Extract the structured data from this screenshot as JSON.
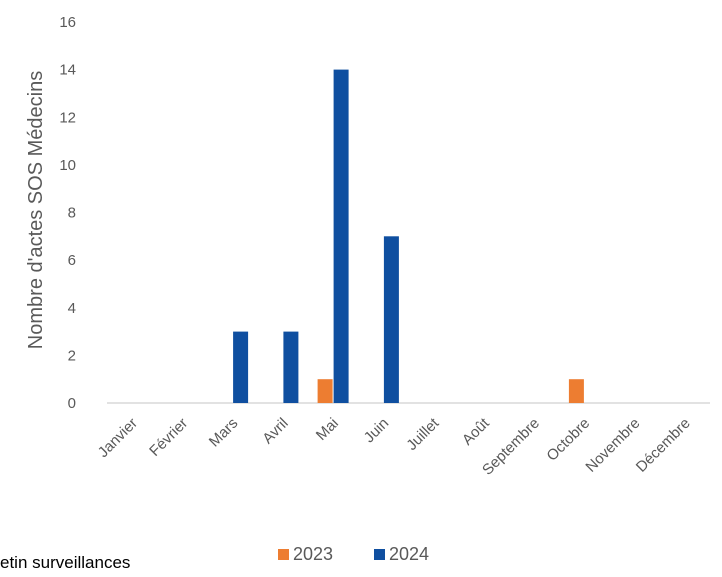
{
  "chart_data": {
    "type": "bar",
    "title": "",
    "xlabel": "",
    "ylabel": "Nombre d'actes SOS Médecins",
    "ylim": [
      0,
      16
    ],
    "yticks": [
      0,
      2,
      4,
      6,
      8,
      10,
      12,
      14,
      16
    ],
    "grid": false,
    "legend_position": "bottom",
    "categories": [
      "Janvier",
      "Février",
      "Mars",
      "Avril",
      "Mai",
      "Juin",
      "Juillet",
      "Août",
      "Septembre",
      "Octobre",
      "Novembre",
      "Décembre"
    ],
    "series": [
      {
        "name": "2023",
        "color": "#ed7d31",
        "values": [
          0,
          0,
          0,
          0,
          1,
          0,
          0,
          0,
          0,
          1,
          0,
          0
        ]
      },
      {
        "name": "2024",
        "color": "#0f4fa0",
        "values": [
          0,
          0,
          3,
          3,
          14,
          7,
          0,
          0,
          0,
          0,
          0,
          0
        ]
      }
    ]
  },
  "page_fragment": "etin surveillances"
}
